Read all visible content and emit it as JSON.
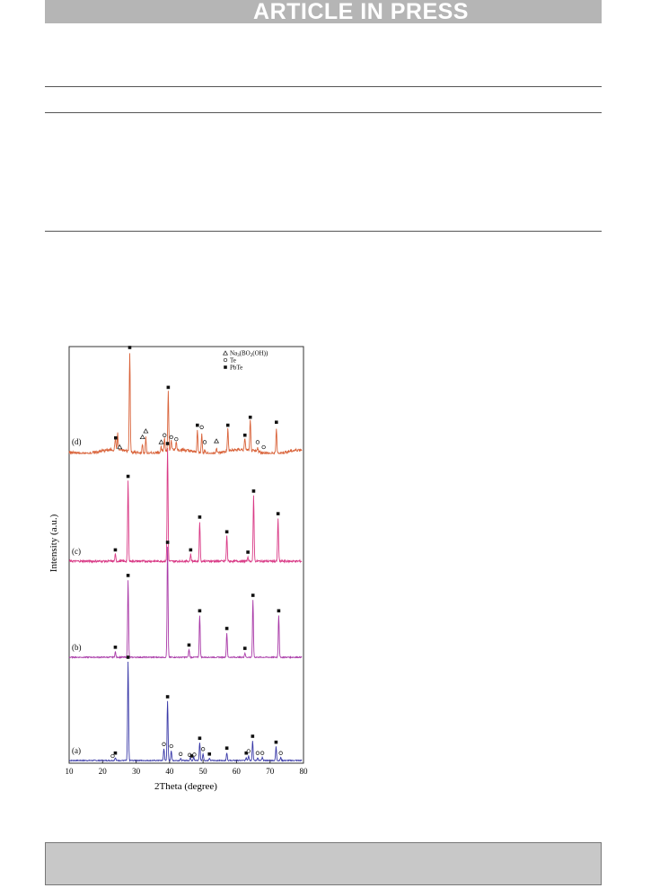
{
  "header": {
    "banner_text": "ARTICLE IN PRESS"
  },
  "chart_data": {
    "type": "line",
    "xlabel": "2Theta (degree)",
    "ylabel": "Intensity (a.u.)",
    "xlim": [
      10,
      80
    ],
    "xticks": [
      10,
      20,
      30,
      40,
      50,
      60,
      70,
      80
    ],
    "legend": {
      "placement": "top-right",
      "entries": [
        {
          "marker": "triangle",
          "label": "Na",
          "sub": "3",
          "label2": "(BO",
          "sub2": "2",
          "label3": "(OH))"
        },
        {
          "marker": "circle",
          "label": "Te"
        },
        {
          "marker": "square",
          "label": "PbTe"
        }
      ]
    },
    "series": [
      {
        "label": "(a)",
        "color": "#3a3aa8",
        "peaks": [
          [
            23.8,
            0.03
          ],
          [
            27.6,
            1.0
          ],
          [
            38.3,
            0.12
          ],
          [
            39.4,
            0.6
          ],
          [
            40.5,
            0.1
          ],
          [
            43.3,
            0.02
          ],
          [
            46.2,
            0.03
          ],
          [
            47.2,
            0.04
          ],
          [
            49.0,
            0.18
          ],
          [
            50.0,
            0.07
          ],
          [
            51.9,
            0.02
          ],
          [
            57.1,
            0.08
          ],
          [
            62.9,
            0.03
          ],
          [
            63.6,
            0.05
          ],
          [
            64.8,
            0.2
          ],
          [
            66.3,
            0.03
          ],
          [
            67.7,
            0.03
          ],
          [
            71.8,
            0.14
          ],
          [
            73.2,
            0.03
          ]
        ],
        "markers": [
          {
            "x": 23.0,
            "type": "circle"
          },
          {
            "x": 23.8,
            "type": "square"
          },
          {
            "x": 27.6,
            "type": "square"
          },
          {
            "x": 38.3,
            "type": "circle"
          },
          {
            "x": 39.4,
            "type": "square"
          },
          {
            "x": 40.5,
            "type": "circle"
          },
          {
            "x": 43.3,
            "type": "circle"
          },
          {
            "x": 46.0,
            "type": "circle"
          },
          {
            "x": 46.6,
            "type": "square"
          },
          {
            "x": 47.4,
            "type": "circle"
          },
          {
            "x": 49.0,
            "type": "square"
          },
          {
            "x": 50.0,
            "type": "circle"
          },
          {
            "x": 51.9,
            "type": "square"
          },
          {
            "x": 57.1,
            "type": "square"
          },
          {
            "x": 62.9,
            "type": "square"
          },
          {
            "x": 63.6,
            "type": "circle"
          },
          {
            "x": 64.8,
            "type": "square"
          },
          {
            "x": 66.3,
            "type": "circle"
          },
          {
            "x": 67.7,
            "type": "circle"
          },
          {
            "x": 71.8,
            "type": "square"
          },
          {
            "x": 73.2,
            "type": "circle"
          }
        ]
      },
      {
        "label": "(b)",
        "color": "#a93aa8",
        "peaks": [
          [
            23.8,
            0.05
          ],
          [
            27.6,
            0.7
          ],
          [
            39.4,
            1.0
          ],
          [
            45.8,
            0.07
          ],
          [
            49.0,
            0.38
          ],
          [
            57.1,
            0.22
          ],
          [
            62.5,
            0.04
          ],
          [
            64.9,
            0.52
          ],
          [
            72.6,
            0.38
          ]
        ],
        "markers": [
          {
            "x": 23.8,
            "type": "square"
          },
          {
            "x": 27.6,
            "type": "square"
          },
          {
            "x": 39.4,
            "type": "square"
          },
          {
            "x": 45.8,
            "type": "square"
          },
          {
            "x": 49.0,
            "type": "square"
          },
          {
            "x": 57.1,
            "type": "square"
          },
          {
            "x": 62.5,
            "type": "square"
          },
          {
            "x": 64.9,
            "type": "square"
          },
          {
            "x": 72.6,
            "type": "square"
          }
        ]
      },
      {
        "label": "(c)",
        "color": "#d93a86",
        "peaks": [
          [
            23.8,
            0.06
          ],
          [
            27.6,
            0.71
          ],
          [
            39.4,
            1.0
          ],
          [
            46.3,
            0.06
          ],
          [
            49.0,
            0.35
          ],
          [
            57.1,
            0.22
          ],
          [
            63.4,
            0.04
          ],
          [
            65.1,
            0.58
          ],
          [
            72.4,
            0.38
          ]
        ],
        "markers": [
          {
            "x": 23.8,
            "type": "square"
          },
          {
            "x": 27.6,
            "type": "square"
          },
          {
            "x": 39.4,
            "type": "square"
          },
          {
            "x": 46.3,
            "type": "square"
          },
          {
            "x": 49.0,
            "type": "square"
          },
          {
            "x": 57.1,
            "type": "square"
          },
          {
            "x": 63.4,
            "type": "square"
          },
          {
            "x": 65.1,
            "type": "square"
          },
          {
            "x": 72.4,
            "type": "square"
          }
        ]
      },
      {
        "label": "(d)",
        "color": "#d9633a",
        "peaks": [
          [
            23.8,
            0.12
          ],
          [
            24.5,
            0.16
          ],
          [
            28.1,
            1.0
          ],
          [
            31.9,
            0.1
          ],
          [
            32.9,
            0.16
          ],
          [
            37.5,
            0.05
          ],
          [
            38.5,
            0.12
          ],
          [
            39.6,
            0.6
          ],
          [
            40.5,
            0.1
          ],
          [
            42.0,
            0.08
          ],
          [
            48.3,
            0.22
          ],
          [
            49.6,
            0.2
          ],
          [
            50.5,
            0.05
          ],
          [
            54.0,
            0.06
          ],
          [
            57.4,
            0.22
          ],
          [
            62.5,
            0.12
          ],
          [
            64.1,
            0.3
          ],
          [
            66.3,
            0.05
          ],
          [
            71.9,
            0.25
          ]
        ],
        "markers": [
          {
            "x": 23.9,
            "type": "square"
          },
          {
            "x": 25.1,
            "type": "triangle"
          },
          {
            "x": 28.1,
            "type": "square"
          },
          {
            "x": 31.9,
            "type": "triangle"
          },
          {
            "x": 32.9,
            "type": "triangle"
          },
          {
            "x": 37.5,
            "type": "triangle"
          },
          {
            "x": 38.5,
            "type": "circle"
          },
          {
            "x": 39.6,
            "type": "square"
          },
          {
            "x": 40.5,
            "type": "circle"
          },
          {
            "x": 42.0,
            "type": "circle"
          },
          {
            "x": 48.3,
            "type": "square"
          },
          {
            "x": 49.6,
            "type": "circle"
          },
          {
            "x": 50.5,
            "type": "circle"
          },
          {
            "x": 54.0,
            "type": "triangle"
          },
          {
            "x": 57.4,
            "type": "square"
          },
          {
            "x": 62.5,
            "type": "square"
          },
          {
            "x": 64.1,
            "type": "square"
          },
          {
            "x": 66.3,
            "type": "circle"
          },
          {
            "x": 68.1,
            "type": "circle"
          },
          {
            "x": 71.9,
            "type": "square"
          }
        ]
      }
    ]
  }
}
